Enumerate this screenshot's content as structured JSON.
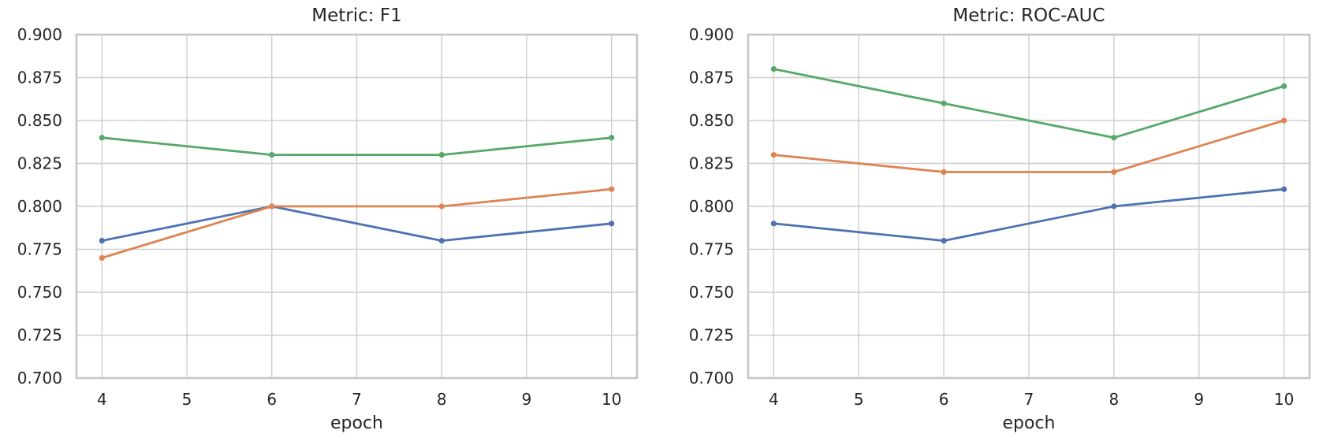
{
  "styles": {
    "background": "#ffffff",
    "text_color": "#262626",
    "grid_color": "#cdcdcd",
    "spine_color": "#c6c6c6"
  },
  "chart_data": [
    {
      "type": "line",
      "title": "Metric: F1",
      "xlabel": "epoch",
      "ylabel": "",
      "grid": true,
      "legend": "none",
      "marker": "circle",
      "x": [
        4,
        6,
        8,
        10
      ],
      "series": [
        {
          "name": "series-blue",
          "color": "#4C72B0",
          "values": [
            0.78,
            0.8,
            0.78,
            0.79
          ]
        },
        {
          "name": "series-orange",
          "color": "#DD8452",
          "values": [
            0.77,
            0.8,
            0.8,
            0.81
          ]
        },
        {
          "name": "series-green",
          "color": "#55A868",
          "values": [
            0.84,
            0.83,
            0.83,
            0.84
          ]
        }
      ],
      "xlim": [
        3.7,
        10.3
      ],
      "ylim": [
        0.7,
        0.9
      ],
      "xticks": [
        4,
        5,
        6,
        7,
        8,
        9,
        10
      ],
      "xtick_labels": [
        "4",
        "5",
        "6",
        "7",
        "8",
        "9",
        "10"
      ],
      "yticks": [
        0.7,
        0.725,
        0.75,
        0.775,
        0.8,
        0.825,
        0.85,
        0.875,
        0.9
      ],
      "ytick_labels": [
        "0.700",
        "0.725",
        "0.750",
        "0.775",
        "0.800",
        "0.825",
        "0.850",
        "0.875",
        "0.900"
      ]
    },
    {
      "type": "line",
      "title": "Metric: ROC-AUC",
      "xlabel": "epoch",
      "ylabel": "",
      "grid": true,
      "legend": "none",
      "marker": "circle",
      "x": [
        4,
        6,
        8,
        10
      ],
      "series": [
        {
          "name": "series-blue",
          "color": "#4C72B0",
          "values": [
            0.79,
            0.78,
            0.8,
            0.81
          ]
        },
        {
          "name": "series-orange",
          "color": "#DD8452",
          "values": [
            0.83,
            0.82,
            0.82,
            0.85
          ]
        },
        {
          "name": "series-green",
          "color": "#55A868",
          "values": [
            0.88,
            0.86,
            0.84,
            0.87
          ]
        }
      ],
      "xlim": [
        3.7,
        10.3
      ],
      "ylim": [
        0.7,
        0.9
      ],
      "xticks": [
        4,
        5,
        6,
        7,
        8,
        9,
        10
      ],
      "xtick_labels": [
        "4",
        "5",
        "6",
        "7",
        "8",
        "9",
        "10"
      ],
      "yticks": [
        0.7,
        0.725,
        0.75,
        0.775,
        0.8,
        0.825,
        0.85,
        0.875,
        0.9
      ],
      "ytick_labels": [
        "0.700",
        "0.725",
        "0.750",
        "0.775",
        "0.800",
        "0.825",
        "0.850",
        "0.875",
        "0.900"
      ]
    }
  ]
}
